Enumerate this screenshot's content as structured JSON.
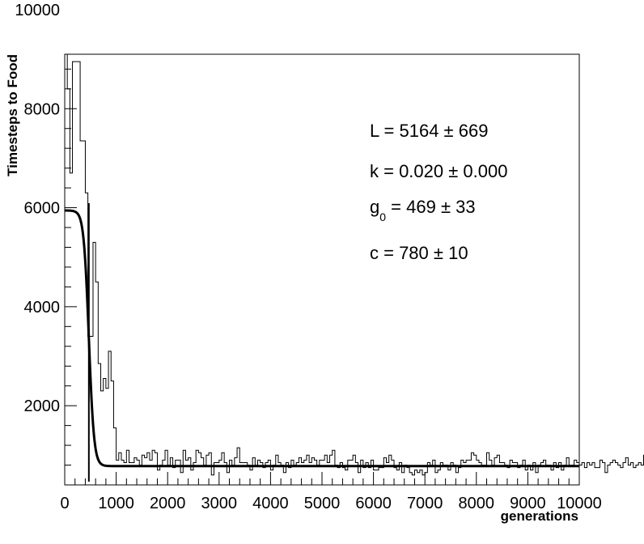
{
  "chart_data": {
    "type": "histogram-with-fit",
    "title": "",
    "xlabel": "generations",
    "ylabel": "Timesteps to Food",
    "xlim": [
      0,
      10000
    ],
    "ylim": [
      400,
      9100
    ],
    "x_ticks": [
      0,
      1000,
      2000,
      3000,
      4000,
      5000,
      6000,
      7000,
      8000,
      9000,
      10000
    ],
    "x_tick_labels": [
      "0",
      "1000",
      "2000",
      "3000",
      "4000",
      "5000",
      "6000",
      "7000",
      "8000",
      "9000",
      "10000"
    ],
    "y_ticks": [
      2000,
      4000,
      6000,
      8000,
      10000
    ],
    "y_tick_labels": [
      "2000",
      "4000",
      "6000",
      "8000",
      "10000"
    ],
    "grid": false,
    "vertical_marker_x": 469,
    "annotations": [
      {
        "id": "L",
        "text": "L = 5164 ± 669"
      },
      {
        "id": "k",
        "text": "k = 0.020 ± 0.000"
      },
      {
        "id": "g0",
        "prefix": "g",
        "subscript": "0",
        "suffix": " = 469 ± 33"
      },
      {
        "id": "c",
        "text": "c = 780 ± 10"
      }
    ],
    "fit": {
      "model": "logistic",
      "L": 5164,
      "k": 0.02,
      "g0": 469,
      "c": 780
    },
    "histogram": {
      "bin_width": 50,
      "x_start": 0,
      "values": [
        9300,
        8400,
        6700,
        8950,
        8950,
        8950,
        7350,
        7350,
        6300,
        3400,
        3400,
        5300,
        4500,
        2850,
        2300,
        2550,
        2350,
        3100,
        2500,
        1550,
        900,
        1050,
        900,
        850,
        1100,
        850,
        850,
        950,
        900,
        800,
        1000,
        950,
        1050,
        900,
        1100,
        1050,
        700,
        800,
        900,
        1100,
        800,
        950,
        750,
        900,
        900,
        650,
        1100,
        900,
        950,
        700,
        850,
        1100,
        1050,
        950,
        800,
        1000,
        1050,
        600,
        850,
        850,
        900,
        1050,
        850,
        650,
        900,
        800,
        950,
        1150,
        850,
        850,
        850,
        800,
        700,
        950,
        800,
        900,
        850,
        750,
        850,
        900,
        700,
        800,
        1000,
        850,
        800,
        650,
        850,
        750,
        900,
        800,
        850,
        950,
        850,
        900,
        1000,
        850,
        950,
        900,
        800,
        900,
        900,
        1000,
        850,
        1000,
        1100,
        800,
        750,
        850,
        750,
        700,
        900,
        900,
        1000,
        850,
        650,
        900,
        750,
        850,
        750,
        900,
        700,
        700,
        750,
        750,
        950,
        850,
        1000,
        900,
        750,
        700,
        850,
        650,
        800,
        750,
        650,
        600,
        700,
        650,
        700,
        600,
        650,
        850,
        800,
        900,
        650,
        700,
        850,
        800,
        800,
        700,
        850,
        800,
        650,
        750,
        900,
        850,
        900,
        900,
        1050,
        1000,
        900,
        850,
        800,
        800,
        1050,
        900,
        800,
        950,
        1000,
        850,
        850,
        800,
        750,
        900,
        850,
        850,
        750,
        800,
        900,
        700,
        800,
        700,
        850,
        650,
        800,
        850,
        900,
        800,
        800,
        700,
        850,
        750,
        850,
        700,
        800,
        950,
        800,
        800,
        900,
        850,
        800,
        850,
        750,
        850,
        800,
        850,
        750,
        750,
        900,
        850,
        650,
        800,
        850,
        900,
        850,
        800,
        750,
        850,
        950,
        800,
        850,
        750,
        800,
        850,
        800,
        1000,
        1050,
        900,
        1000,
        900,
        1100,
        1350,
        1200,
        1350,
        1000,
        950,
        1050,
        850,
        900,
        1100,
        950,
        1100,
        700
      ]
    }
  }
}
